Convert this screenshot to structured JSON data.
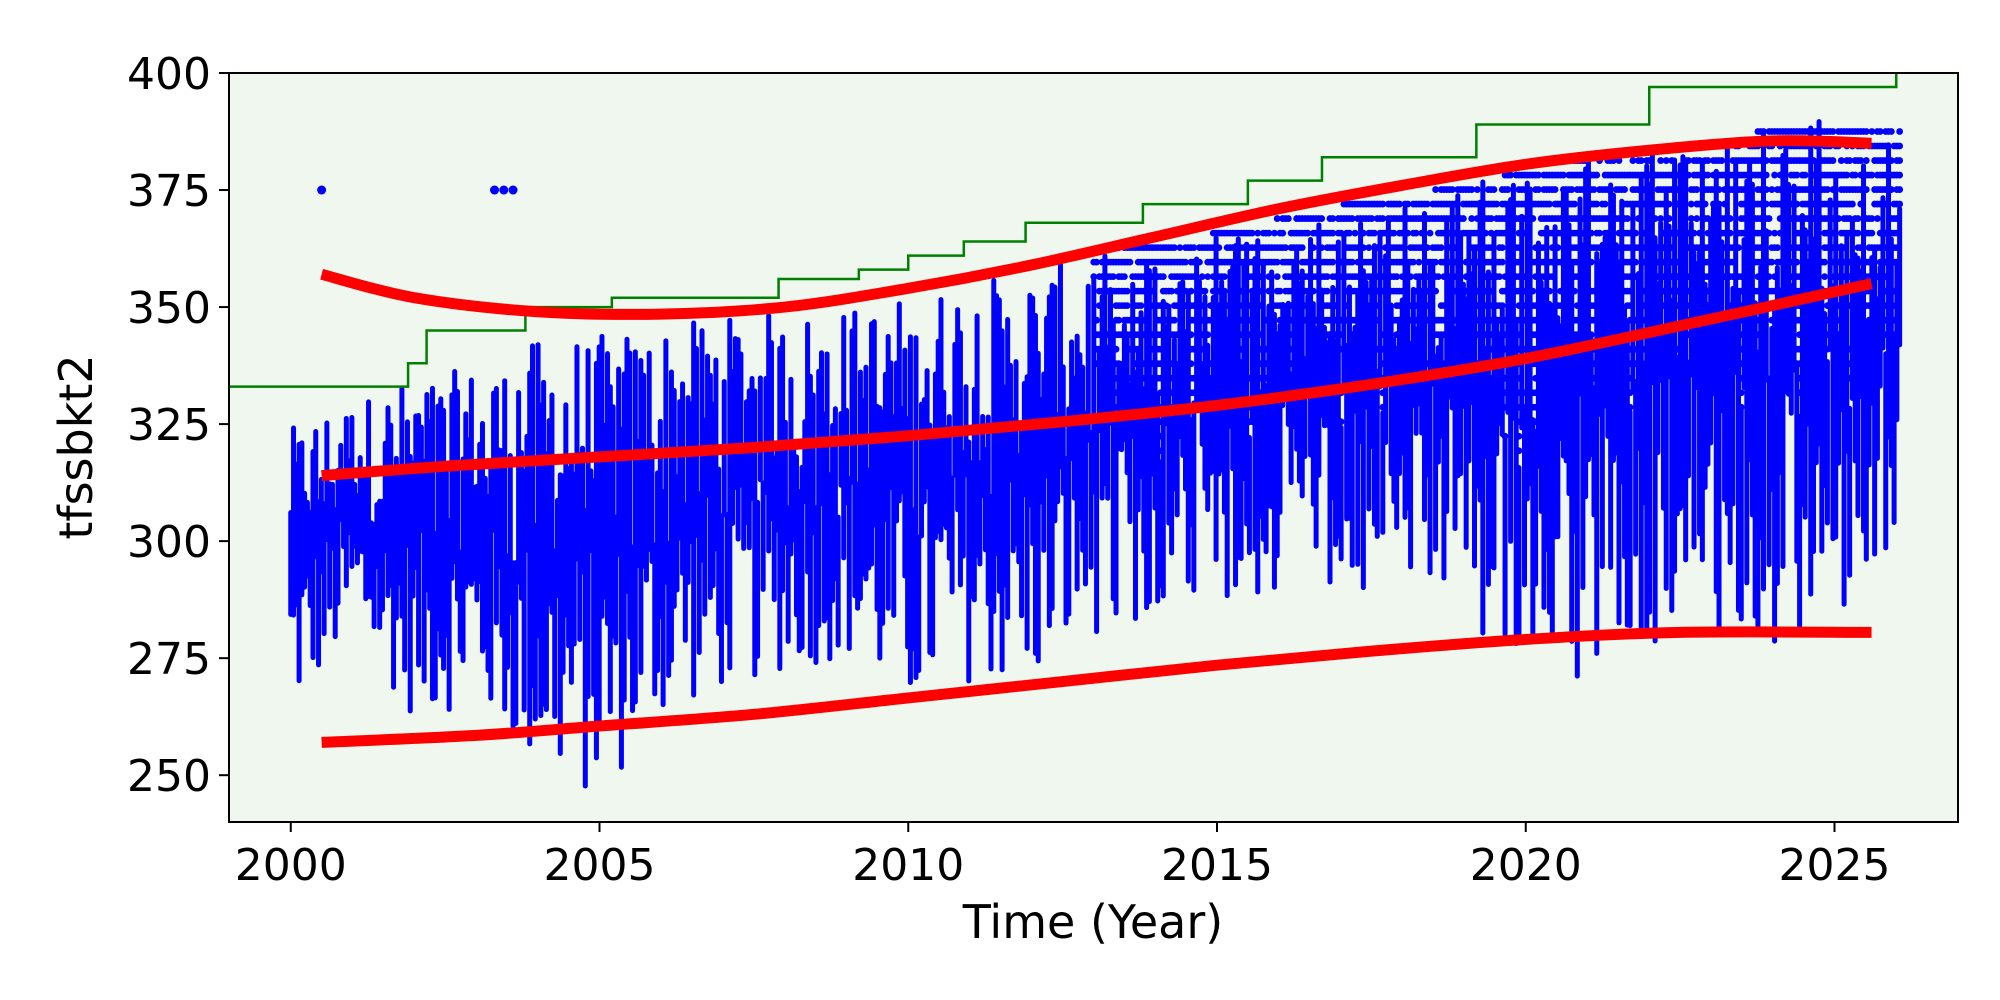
{
  "chart_data": {
    "type": "scatter",
    "xlabel": "Time (Year)",
    "ylabel": "tfssbkt2",
    "xlim": [
      1999.0,
      2027.0
    ],
    "ylim": [
      240,
      400
    ],
    "xticks": [
      2000,
      2005,
      2010,
      2015,
      2020,
      2025
    ],
    "yticks": [
      250,
      275,
      300,
      325,
      350,
      375,
      400
    ],
    "grid": false,
    "plot_background": "#eff7ef",
    "colors": {
      "points": "#0000ff",
      "trend": "#ff0000",
      "limit": "#008000"
    },
    "limit_step": {
      "x": [
        1999.0,
        2001.9,
        2002.2,
        2003.8,
        2005.2,
        2007.9,
        2009.2,
        2010.0,
        2010.9,
        2011.9,
        2013.8,
        2015.5,
        2016.7,
        2019.2,
        2022.0,
        2026.0
      ],
      "y": [
        333,
        338,
        345,
        350,
        352,
        356,
        358,
        361,
        364,
        368,
        372,
        377,
        382,
        389,
        397,
        400
      ]
    },
    "trend_upper": {
      "x": [
        2000.5,
        2002.0,
        2004.0,
        2006.0,
        2008.0,
        2010.0,
        2012.0,
        2014.0,
        2016.0,
        2018.0,
        2020.0,
        2022.0,
        2024.0,
        2025.6
      ],
      "y": [
        357,
        352,
        349,
        348.5,
        350,
        354,
        359,
        365,
        371,
        376,
        380.5,
        383.5,
        385.5,
        385
      ]
    },
    "trend_middle": {
      "x": [
        2000.5,
        2002.5,
        2005.0,
        2007.5,
        2010.0,
        2012.5,
        2015.0,
        2017.5,
        2020.0,
        2022.5,
        2025.6
      ],
      "y": [
        314,
        316,
        318,
        320,
        322.5,
        325.5,
        329,
        333.5,
        339,
        346,
        355
      ]
    },
    "trend_lower": {
      "x": [
        2000.5,
        2003.0,
        2005.0,
        2007.5,
        2010.0,
        2012.5,
        2015.0,
        2017.5,
        2020.0,
        2022.5,
        2025.6
      ],
      "y": [
        257,
        258.5,
        260.5,
        263,
        266.5,
        270,
        273.5,
        276.5,
        279,
        280.5,
        280.5
      ]
    },
    "scatter_envelope": {
      "description_years": [
        2000.0,
        2001.0,
        2002.0,
        2003.0,
        2004.0,
        2005.0,
        2006.0,
        2007.0,
        2008.0,
        2009.0,
        2010.0,
        2011.0,
        2012.0,
        2013.0,
        2014.0,
        2015.0,
        2016.0,
        2017.0,
        2018.0,
        2019.0,
        2020.0,
        2021.0,
        2022.0,
        2023.0,
        2024.0,
        2025.0,
        2026.1
      ],
      "y_min": [
        262,
        280,
        262,
        265,
        250,
        244,
        262,
        268,
        272,
        275,
        263,
        270,
        268,
        280,
        285,
        287,
        288,
        290,
        290,
        278,
        277,
        270,
        278,
        280,
        278,
        285,
        290
      ],
      "y_max": [
        324,
        330,
        335,
        337,
        343,
        344,
        346,
        348,
        349,
        350,
        352,
        356,
        358,
        362,
        364,
        366,
        369,
        372,
        373,
        377,
        379,
        382,
        383,
        383,
        390,
        390,
        390
      ]
    },
    "outlier_points": [
      {
        "x": 2000.5,
        "y": 375
      },
      {
        "x": 2003.3,
        "y": 375
      },
      {
        "x": 2003.45,
        "y": 375
      },
      {
        "x": 2003.6,
        "y": 375
      }
    ]
  }
}
